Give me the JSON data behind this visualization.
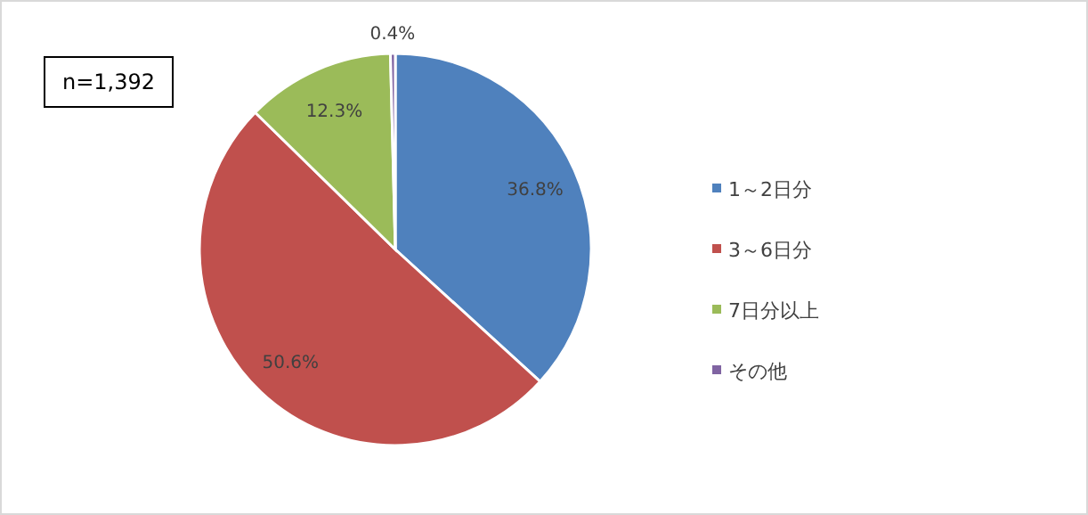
{
  "chart_data": {
    "type": "pie",
    "categories": [
      "1～2日分",
      "3～6日分",
      "7日分以上",
      "その他"
    ],
    "values": [
      36.8,
      50.6,
      12.3,
      0.4
    ],
    "colors": [
      "#4f81bd",
      "#c0504d",
      "#9bbb59",
      "#8064a2"
    ],
    "value_labels": [
      "36.8%",
      "50.6%",
      "12.3%",
      "0.4%"
    ],
    "legend": "right",
    "annotations": [
      "n=1,392"
    ]
  }
}
